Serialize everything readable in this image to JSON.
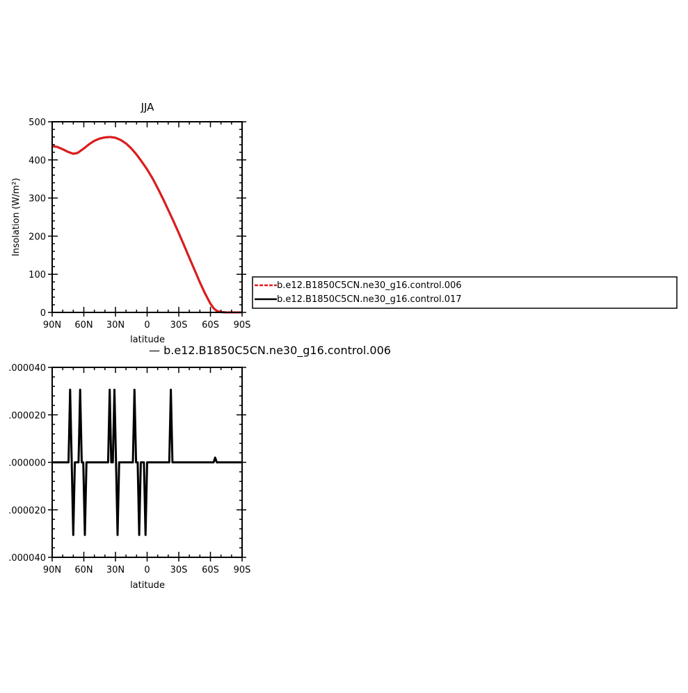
{
  "chart_data": [
    {
      "type": "line",
      "title": "JJA",
      "xlabel": "latitude",
      "ylabel": "Insolation (W/m²)",
      "xlim": [
        90,
        -90
      ],
      "ylim": [
        0,
        500
      ],
      "xticks": [
        90,
        60,
        30,
        0,
        -30,
        -60,
        -90
      ],
      "xtick_labels": [
        "90N",
        "60N",
        "30N",
        "0",
        "30S",
        "60S",
        "90S"
      ],
      "yticks": [
        0,
        100,
        200,
        300,
        400,
        500
      ],
      "ytick_labels": [
        "0",
        "100",
        "200",
        "300",
        "400",
        "500"
      ],
      "legend_position": "right",
      "series": [
        {
          "name": "b.e12.B1850C5CN.ne30_g16.control.006",
          "color": "#e31a1c",
          "dash": "dashed",
          "x": [
            90,
            85,
            80,
            75,
            70,
            66,
            60,
            55,
            50,
            45,
            40,
            35,
            30,
            25,
            20,
            15,
            10,
            5,
            0,
            -5,
            -10,
            -15,
            -20,
            -25,
            -30,
            -35,
            -40,
            -45,
            -50,
            -55,
            -60,
            -63,
            -66,
            -70,
            -75,
            -80,
            -85,
            -90
          ],
          "y": [
            436,
            434,
            428,
            421,
            416,
            418,
            430,
            441,
            450,
            456,
            459,
            460,
            458,
            452,
            443,
            430,
            414,
            395,
            375,
            352,
            326,
            298,
            269,
            239,
            208,
            176,
            143,
            111,
            79,
            49,
            23,
            11,
            4,
            1,
            0,
            0,
            0,
            0
          ]
        },
        {
          "name": "b.e12.B1850C5CN.ne30_g16.control.017",
          "color": "#000000",
          "dash": "solid",
          "x": [
            90,
            85,
            80,
            75,
            70,
            66,
            60,
            55,
            50,
            45,
            40,
            35,
            30,
            25,
            20,
            15,
            10,
            5,
            0,
            -5,
            -10,
            -15,
            -20,
            -25,
            -30,
            -35,
            -40,
            -45,
            -50,
            -55,
            -60,
            -63,
            -66,
            -70,
            -75,
            -80,
            -85,
            -90
          ],
          "y": [
            436,
            434,
            428,
            421,
            416,
            418,
            430,
            441,
            450,
            456,
            459,
            460,
            458,
            452,
            443,
            430,
            414,
            395,
            375,
            352,
            326,
            298,
            269,
            239,
            208,
            176,
            143,
            111,
            79,
            49,
            23,
            11,
            4,
            1,
            0,
            0,
            0,
            0
          ]
        }
      ]
    },
    {
      "type": "line",
      "title": "—  b.e12.B1850C5CN.ne30_g16.control.006",
      "xlabel": "latitude",
      "ylabel": "",
      "xlim": [
        90,
        -90
      ],
      "ylim": [
        -4e-05,
        4e-05
      ],
      "xticks": [
        90,
        60,
        30,
        0,
        -30,
        -60,
        -90
      ],
      "xtick_labels": [
        "90N",
        "60N",
        "30N",
        "0",
        "30S",
        "60S",
        "90S"
      ],
      "yticks": [
        4e-05,
        2e-05,
        0,
        -2e-05,
        -4e-05
      ],
      "ytick_labels": [
        ".000040",
        ".000020",
        ".000000",
        ".000020",
        ".000040"
      ],
      "series": [
        {
          "color": "#000000",
          "x": [
            90,
            74.5,
            73,
            71.5,
            70,
            68.5,
            65,
            63.5,
            62,
            60.5,
            59,
            57.5,
            56,
            54.5,
            37,
            35.5,
            34,
            32.5,
            31,
            29.5,
            28,
            26.5,
            25,
            23.5,
            13.5,
            12,
            10.5,
            9,
            7.5,
            6,
            4.5,
            3,
            1.5,
            0,
            -1.5,
            -3,
            -21,
            -22.5,
            -24,
            -25.5,
            -63,
            -64.5,
            -66,
            -90
          ],
          "y": [
            0,
            0,
            3.06e-05,
            0,
            -3.06e-05,
            0,
            0,
            3.06e-05,
            0,
            0,
            -3.06e-05,
            0,
            0,
            0,
            0,
            3.06e-05,
            0,
            0,
            3.06e-05,
            0,
            -3.06e-05,
            0,
            0,
            0,
            0,
            3.06e-05,
            0,
            0,
            -3.06e-05,
            0,
            0,
            0,
            -3.06e-05,
            0,
            0,
            0,
            0,
            3.06e-05,
            0,
            0,
            0,
            2e-06,
            0,
            0
          ]
        }
      ]
    }
  ]
}
